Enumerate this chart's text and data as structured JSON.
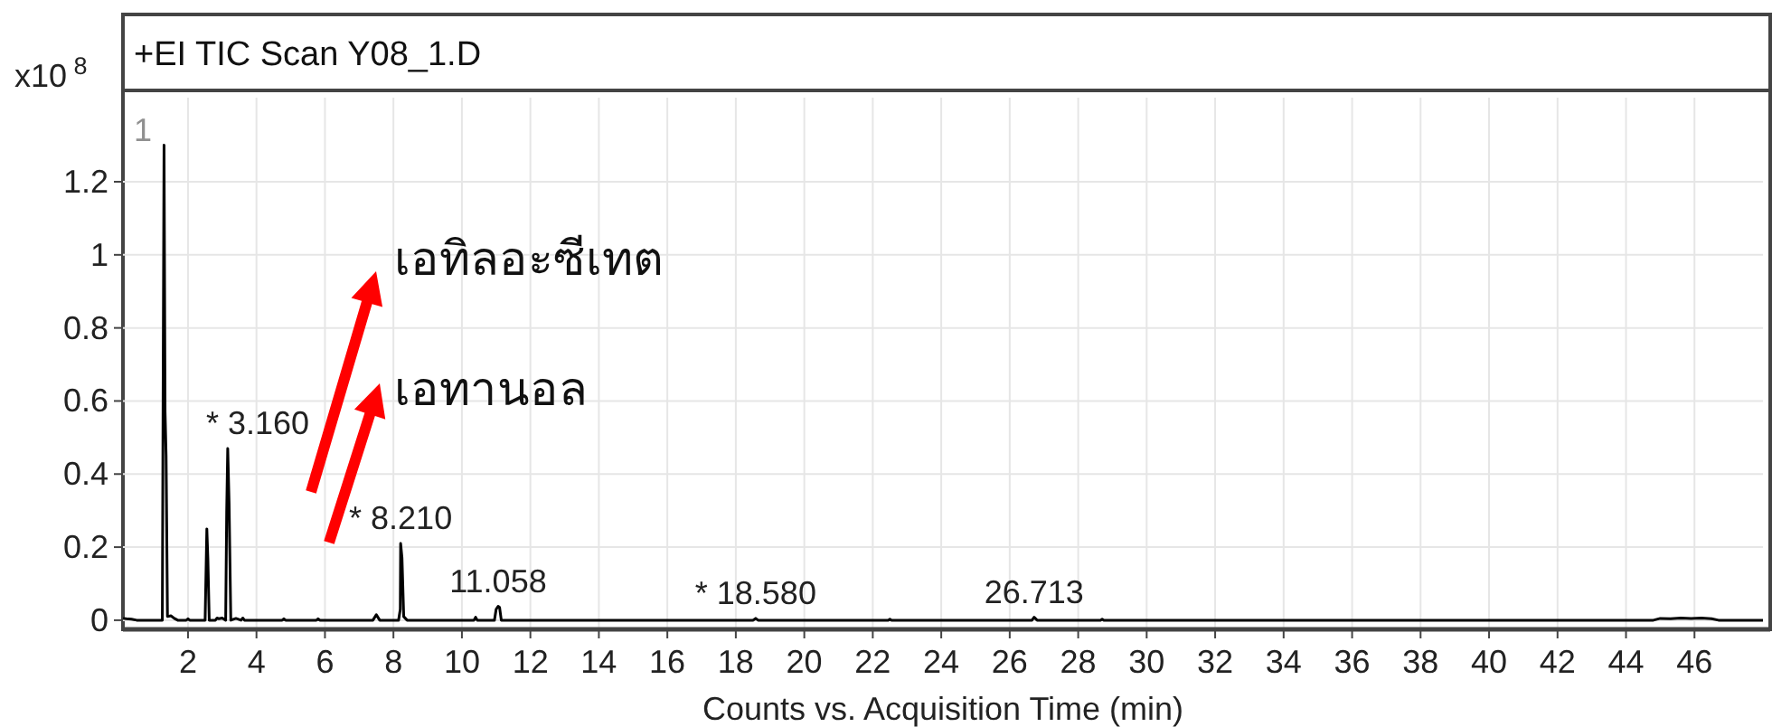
{
  "chart_data": {
    "type": "line",
    "title": "+EI TIC Scan Y08_1.D",
    "xlabel": "Counts vs. Acquisition Time (min)",
    "ylabel": "x10$^{8}$",
    "xlim": [
      0.1,
      48
    ],
    "ylim": [
      -0.025,
      1.45
    ],
    "xticks": [
      2,
      4,
      6,
      8,
      10,
      12,
      14,
      16,
      18,
      20,
      22,
      24,
      26,
      28,
      30,
      32,
      34,
      36,
      38,
      40,
      42,
      44,
      46
    ],
    "yticks": [
      0,
      0.2,
      0.4,
      0.6,
      0.8,
      1,
      1.2
    ],
    "grid": true,
    "marker": "none",
    "line_style": "solid",
    "series": [
      {
        "color": "#000000",
        "x": [
          0.1,
          0.2,
          0.35,
          0.5,
          1.0,
          1.25,
          1.28,
          1.3,
          1.33,
          1.36,
          1.4,
          1.5,
          1.6,
          1.7,
          1.95,
          2.0,
          2.05,
          2.5,
          2.55,
          2.58,
          2.62,
          2.8,
          2.85,
          2.9,
          3.0,
          3.1,
          3.13,
          3.16,
          3.2,
          3.25,
          3.4,
          3.55,
          3.6,
          3.65,
          4.75,
          4.8,
          4.85,
          5.75,
          5.8,
          5.85,
          7.4,
          7.5,
          7.6,
          8.15,
          8.2,
          8.21,
          8.25,
          8.3,
          8.4,
          10.35,
          10.4,
          10.45,
          10.95,
          11.0,
          11.058,
          11.1,
          11.15,
          11.3,
          18.5,
          18.58,
          18.65,
          22.45,
          22.5,
          22.55,
          26.65,
          26.713,
          26.8,
          28.65,
          28.7,
          28.75,
          44.8,
          45.0,
          45.3,
          45.6,
          45.9,
          46.2,
          46.5,
          46.7,
          48.0
        ],
        "values": [
          0.005,
          0.004,
          0.003,
          0,
          0,
          0,
          0.8,
          1.3,
          0.57,
          0.45,
          0.01,
          0.012,
          0.005,
          0,
          0,
          0.004,
          0,
          0,
          0.25,
          0.17,
          0,
          0,
          0.006,
          0.004,
          0.006,
          0,
          0.3,
          0.47,
          0.32,
          0,
          0.005,
          0,
          0.006,
          0,
          0,
          0.004,
          0,
          0,
          0.004,
          0,
          0,
          0.015,
          0,
          0,
          0.03,
          0.21,
          0.17,
          0.01,
          0,
          0,
          0.008,
          0,
          0,
          0.03,
          0.038,
          0.035,
          0,
          0,
          0,
          0.005,
          0,
          0,
          0.003,
          0,
          0,
          0.008,
          0,
          0,
          0.003,
          0,
          0,
          0.005,
          0.004,
          0.006,
          0.005,
          0.006,
          0.004,
          0,
          0
        ]
      }
    ],
    "annotations": [
      "1",
      "เอทิลอะซีเทต",
      "เอทานอล",
      {
        "text": "* 3.160",
        "x": 3.16,
        "y": 0.47
      },
      {
        "text": "* 8.210",
        "x": 8.21,
        "y": 0.21
      },
      {
        "text": "11.058",
        "x": 11.058,
        "y": 0.038
      },
      {
        "text": "* 18.580",
        "x": 18.58,
        "y": 0.005
      },
      {
        "text": "26.713",
        "x": 26.713,
        "y": 0.008
      }
    ]
  }
}
